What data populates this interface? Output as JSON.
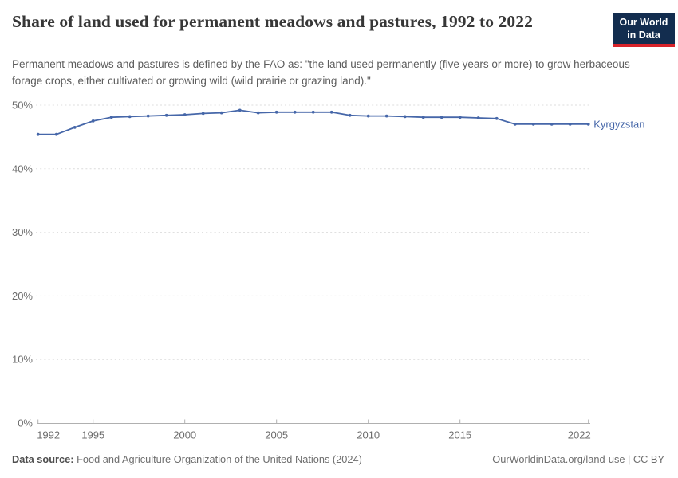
{
  "header": {
    "title": "Share of land used for permanent meadows and pastures, 1992 to 2022",
    "subtitle": "Permanent meadows and pastures is defined by the FAO as: \"the land used permanently (five years or more) to grow herbaceous forage crops, either cultivated or growing wild (wild prairie or grazing land).\"",
    "logo_line1": "Our World",
    "logo_line2": "in Data"
  },
  "chart_data": {
    "type": "line",
    "title": "Share of land used for permanent meadows and pastures, 1992 to 2022",
    "xlabel": "",
    "ylabel": "",
    "unit": "%",
    "xlim": [
      1992,
      2022
    ],
    "ylim": [
      0,
      50
    ],
    "grid": "horizontal-dashed",
    "legend_position": "end-of-line",
    "x": [
      1992,
      1993,
      1994,
      1995,
      1996,
      1997,
      1998,
      1999,
      2000,
      2001,
      2002,
      2003,
      2004,
      2005,
      2006,
      2007,
      2008,
      2009,
      2010,
      2011,
      2012,
      2013,
      2014,
      2015,
      2016,
      2017,
      2018,
      2019,
      2020,
      2021,
      2022
    ],
    "series": [
      {
        "name": "Kyrgyzstan",
        "color": "#4667a9",
        "values": [
          45.4,
          45.4,
          46.5,
          47.5,
          48.1,
          48.2,
          48.3,
          48.4,
          48.5,
          48.7,
          48.8,
          49.2,
          48.8,
          48.9,
          48.9,
          48.9,
          48.9,
          48.4,
          48.3,
          48.3,
          48.2,
          48.1,
          48.1,
          48.1,
          48.0,
          47.9,
          47.0,
          47.0,
          47.0,
          47.0,
          47.0
        ]
      }
    ],
    "yticks": [
      {
        "value": 0,
        "label": "0%"
      },
      {
        "value": 10,
        "label": "10%"
      },
      {
        "value": 20,
        "label": "20%"
      },
      {
        "value": 30,
        "label": "30%"
      },
      {
        "value": 40,
        "label": "40%"
      },
      {
        "value": 50,
        "label": "50%"
      }
    ],
    "xticks": [
      {
        "value": 1992,
        "label": "1992"
      },
      {
        "value": 1995,
        "label": "1995"
      },
      {
        "value": 2000,
        "label": "2000"
      },
      {
        "value": 2005,
        "label": "2005"
      },
      {
        "value": 2010,
        "label": "2010"
      },
      {
        "value": 2015,
        "label": "2015"
      },
      {
        "value": 2022,
        "label": "2022"
      }
    ]
  },
  "footer": {
    "source_label": "Data source:",
    "source_text": " Food and Agriculture Organization of the United Nations (2024)",
    "credit": "OurWorldinData.org/land-use | CC BY"
  },
  "colors": {
    "series_blue": "#4667a9",
    "gridline": "#dcdcdc",
    "axis": "#b0b0b0",
    "tick_label": "#6d6d6d",
    "logo_navy": "#132d4f",
    "logo_red": "#d8232a"
  }
}
